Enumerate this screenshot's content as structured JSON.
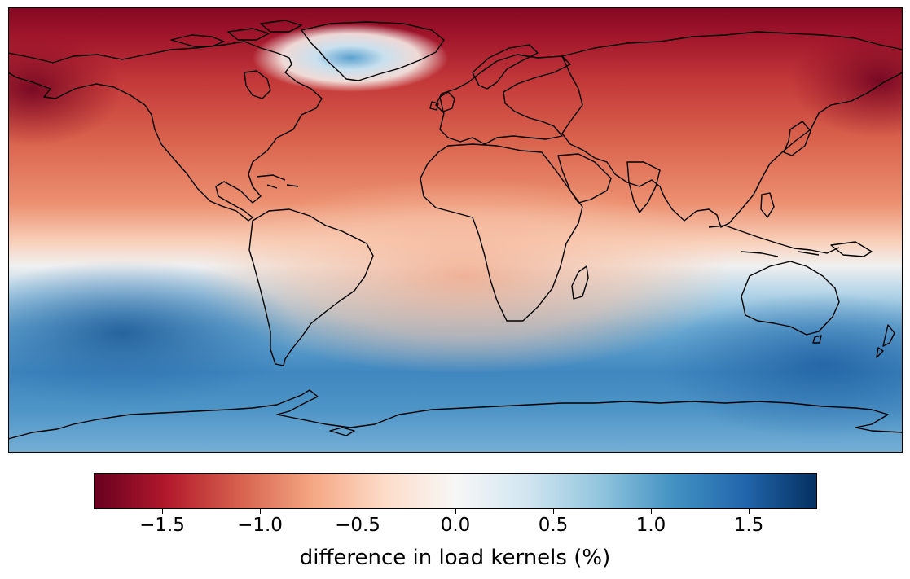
{
  "map": {
    "projection": "plate-carree",
    "extent": {
      "lon": [
        -180,
        180
      ],
      "lat": [
        -90,
        90
      ]
    },
    "field": "difference in load kernels",
    "colormap": "RdBu",
    "coastlines": "black"
  },
  "chart_data": {
    "type": "heatmap",
    "colorbar": {
      "label": "difference in load kernels (%)",
      "range": [
        -1.85,
        1.85
      ],
      "ticks": [
        -1.5,
        -1.0,
        -0.5,
        0.0,
        0.5,
        1.0,
        1.5
      ],
      "tick_labels": [
        "−1.5",
        "−1.0",
        "−0.5",
        "0.0",
        "0.5",
        "1.0",
        "1.5"
      ],
      "colors": [
        "#67001f",
        "#b2182b",
        "#d6604d",
        "#f4a582",
        "#fddbc7",
        "#f7f7f7",
        "#d1e5f0",
        "#92c5de",
        "#4393c3",
        "#2166ac",
        "#053061"
      ]
    }
  }
}
